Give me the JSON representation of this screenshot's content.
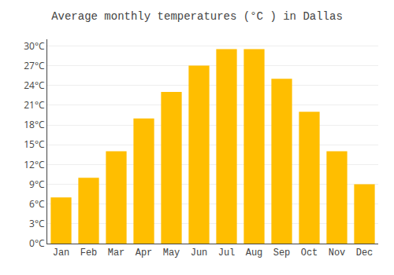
{
  "chart_data": {
    "type": "bar",
    "title": "Average monthly temperatures (°C ) in Dallas",
    "categories": [
      "Jan",
      "Feb",
      "Mar",
      "Apr",
      "May",
      "Jun",
      "Jul",
      "Aug",
      "Sep",
      "Oct",
      "Nov",
      "Dec"
    ],
    "values": [
      7,
      10,
      14,
      19,
      23,
      27,
      29.5,
      29.5,
      25,
      20,
      14,
      9
    ],
    "color": "#FFBE00",
    "ylim": [
      0,
      31
    ],
    "yticks": [
      {
        "value": 0,
        "label": "0°C"
      },
      {
        "value": 3,
        "label": "3°C"
      },
      {
        "value": 6,
        "label": "6°C"
      },
      {
        "value": 9,
        "label": "9°C"
      },
      {
        "value": 12,
        "label": "12°C"
      },
      {
        "value": 15,
        "label": "15°C"
      },
      {
        "value": 18,
        "label": "18°C"
      },
      {
        "value": 21,
        "label": "21°C"
      },
      {
        "value": 24,
        "label": "24°C"
      },
      {
        "value": 27,
        "label": "27°C"
      },
      {
        "value": 30,
        "label": "30°C"
      }
    ],
    "grid": true
  }
}
